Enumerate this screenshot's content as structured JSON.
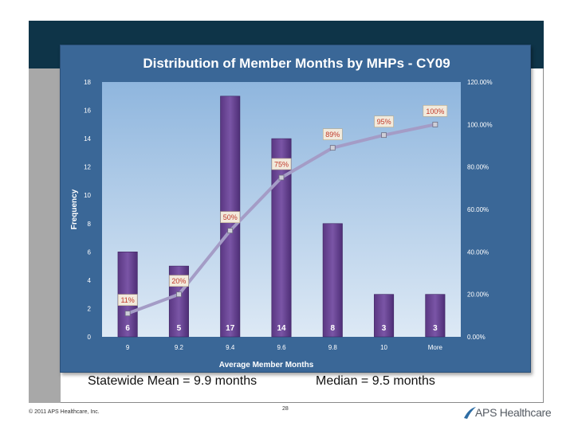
{
  "chart_data": {
    "type": "bar",
    "title": "Distribution of Member Months by MHPs - CY09",
    "xlabel": "Average Member Months",
    "ylabel": "Frequency",
    "categories": [
      "9",
      "9.2",
      "9.4",
      "9.6",
      "9.8",
      "10",
      "More"
    ],
    "series": [
      {
        "type": "bar",
        "values": [
          6,
          5,
          17,
          14,
          8,
          3,
          3
        ],
        "labels": [
          "6",
          "5",
          "17",
          "14",
          "8",
          "3",
          "3"
        ]
      },
      {
        "type": "line",
        "axis": "right",
        "values": [
          11,
          20,
          50,
          75,
          89,
          95,
          100
        ],
        "labels": [
          "11%",
          "20%",
          "50%",
          "75%",
          "89%",
          "95%",
          "100%"
        ]
      }
    ],
    "ylim": [
      0,
      18
    ],
    "yticks": [
      "0",
      "2",
      "4",
      "6",
      "8",
      "10",
      "12",
      "14",
      "16",
      "18"
    ],
    "y2lim": [
      0,
      120
    ],
    "y2ticks": [
      "0.00%",
      "20.00%",
      "40.00%",
      "60.00%",
      "80.00%",
      "100.00%",
      "120.00%"
    ],
    "grid": false,
    "legend": "none",
    "colors": {
      "panel": "#3a6797",
      "plot_top": "#8fb6de",
      "plot_bottom": "#dde9f5",
      "bar": "#6a4593",
      "line": "#a49cc6",
      "marker": "#cfcfd8",
      "label_box": "#f2eadc",
      "label_text": "#c0392b"
    }
  },
  "captions": {
    "mean": "Statewide Mean = 9.9 months",
    "median": "Median = 9.5 months"
  },
  "footer": {
    "copyright": "© 2011 APS Healthcare, Inc.",
    "page_number": "28",
    "logo_text": "APS Healthcare"
  }
}
